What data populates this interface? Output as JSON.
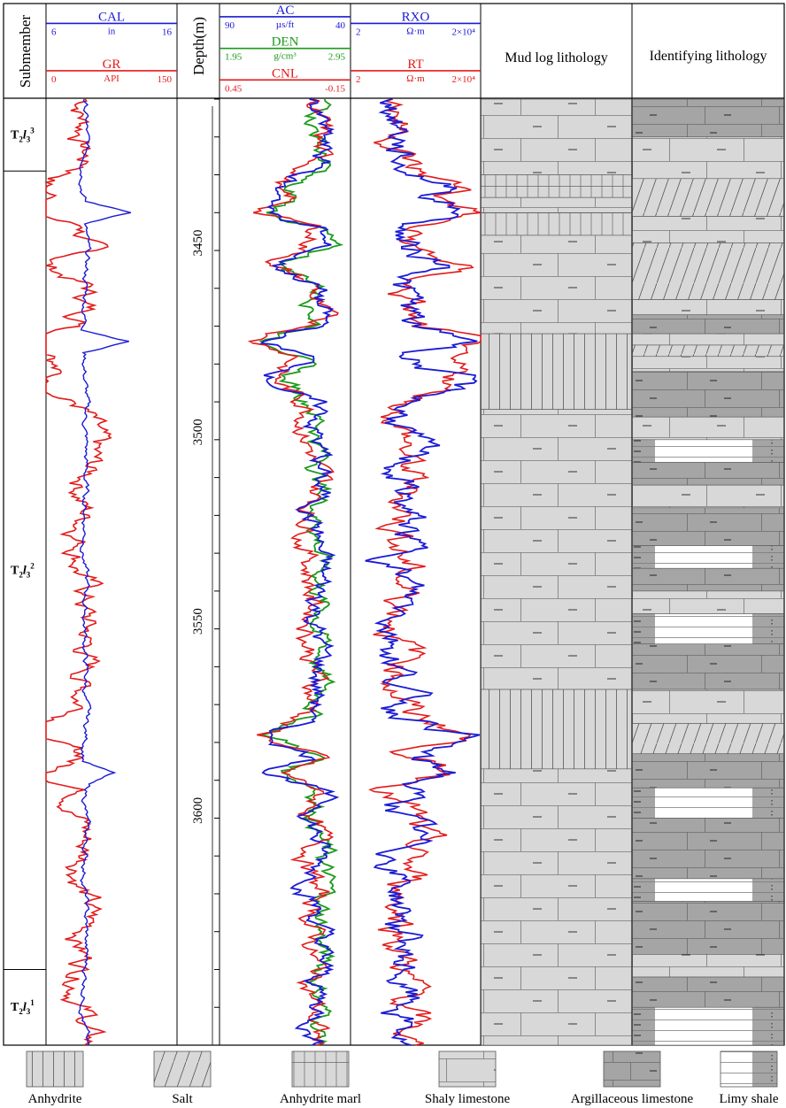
{
  "chart_data": {
    "type": "well-log",
    "depth": {
      "label": "Depth(m)",
      "range": [
        3412,
        3662
      ],
      "ticks": [
        3450,
        3500,
        3550,
        3600
      ]
    },
    "submember_header": "Submember",
    "submembers": [
      {
        "base": "T",
        "sub1": "2",
        "l": "l",
        "sub2": "3",
        "sup": "3",
        "top": 3412,
        "bottom": 3431
      },
      {
        "base": "T",
        "sub1": "2",
        "l": "l",
        "sub2": "3",
        "sup": "2",
        "top": 3431,
        "bottom": 3642
      },
      {
        "base": "T",
        "sub1": "2",
        "l": "l",
        "sub2": "3",
        "sup": "1",
        "top": 3642,
        "bottom": 3662
      }
    ],
    "tracks": [
      {
        "id": "track1",
        "curves": [
          {
            "name": "CAL",
            "unit": "in",
            "min": "6",
            "max": "16",
            "color": "#1a1ad6"
          },
          {
            "name": "GR",
            "unit": "API",
            "min": "0",
            "max": "150",
            "color": "#e41a1a"
          }
        ]
      },
      {
        "id": "track3",
        "curves": [
          {
            "name": "AC",
            "unit": "µs/ft",
            "min": "90",
            "max": "40",
            "color": "#1a1ad6"
          },
          {
            "name": "DEN",
            "unit": "g/cm³",
            "min": "1.95",
            "max": "2.95",
            "color": "#1a9a1a"
          },
          {
            "name": "CNL",
            "unit": "",
            "min": "0.45",
            "max": "-0.15",
            "color": "#e41a1a"
          }
        ]
      },
      {
        "id": "track4",
        "curves": [
          {
            "name": "RXO",
            "unit": "Ω·m",
            "min": "2",
            "max": "2×10⁴",
            "color": "#1a1ad6"
          },
          {
            "name": "RT",
            "unit": "Ω·m",
            "min": "2",
            "max": "2×10⁴",
            "color": "#e41a1a"
          }
        ]
      }
    ],
    "mud_log": {
      "title": "Mud log lithology",
      "intervals": [
        {
          "top": 3412,
          "bottom": 3432,
          "lith": "shaly limestone"
        },
        {
          "top": 3432,
          "bottom": 3438,
          "lith": "anhydrite marl"
        },
        {
          "top": 3438,
          "bottom": 3442,
          "lith": "shaly limestone"
        },
        {
          "top": 3442,
          "bottom": 3448,
          "lith": "anhydrite marl"
        },
        {
          "top": 3448,
          "bottom": 3474,
          "lith": "shaly limestone"
        },
        {
          "top": 3474,
          "bottom": 3494,
          "lith": "anhydrite"
        },
        {
          "top": 3494,
          "bottom": 3568,
          "lith": "shaly limestone"
        },
        {
          "top": 3568,
          "bottom": 3589,
          "lith": "anhydrite"
        },
        {
          "top": 3589,
          "bottom": 3662,
          "lith": "shaly limestone"
        }
      ]
    },
    "identified": {
      "title": "Identifying lithology",
      "intervals": [
        {
          "top": 3412,
          "bottom": 3422,
          "lith": "argillaceous limestone"
        },
        {
          "top": 3422,
          "bottom": 3433,
          "lith": "shaly limestone"
        },
        {
          "top": 3433,
          "bottom": 3443,
          "lith": "salt"
        },
        {
          "top": 3443,
          "bottom": 3450,
          "lith": "shaly limestone"
        },
        {
          "top": 3450,
          "bottom": 3465,
          "lith": "salt"
        },
        {
          "top": 3465,
          "bottom": 3469,
          "lith": "shaly limestone"
        },
        {
          "top": 3469,
          "bottom": 3474,
          "lith": "argillaceous limestone"
        },
        {
          "top": 3474,
          "bottom": 3477,
          "lith": "shaly limestone"
        },
        {
          "top": 3477,
          "bottom": 3480,
          "lith": "salt"
        },
        {
          "top": 3480,
          "bottom": 3484,
          "lith": "shaly limestone"
        },
        {
          "top": 3484,
          "bottom": 3496,
          "lith": "argillaceous limestone"
        },
        {
          "top": 3496,
          "bottom": 3502,
          "lith": "shaly limestone"
        },
        {
          "top": 3502,
          "bottom": 3508,
          "lith": "limy shale"
        },
        {
          "top": 3508,
          "bottom": 3514,
          "lith": "argillaceous limestone"
        },
        {
          "top": 3514,
          "bottom": 3520,
          "lith": "shaly limestone"
        },
        {
          "top": 3520,
          "bottom": 3530,
          "lith": "argillaceous limestone"
        },
        {
          "top": 3530,
          "bottom": 3536,
          "lith": "limy shale"
        },
        {
          "top": 3536,
          "bottom": 3542,
          "lith": "argillaceous limestone"
        },
        {
          "top": 3542,
          "bottom": 3548,
          "lith": "shaly limestone"
        },
        {
          "top": 3548,
          "bottom": 3556,
          "lith": "limy shale"
        },
        {
          "top": 3556,
          "bottom": 3568,
          "lith": "argillaceous limestone"
        },
        {
          "top": 3568,
          "bottom": 3577,
          "lith": "shaly limestone"
        },
        {
          "top": 3577,
          "bottom": 3585,
          "lith": "salt"
        },
        {
          "top": 3585,
          "bottom": 3594,
          "lith": "argillaceous limestone"
        },
        {
          "top": 3594,
          "bottom": 3602,
          "lith": "limy shale"
        },
        {
          "top": 3602,
          "bottom": 3618,
          "lith": "argillaceous limestone"
        },
        {
          "top": 3618,
          "bottom": 3624,
          "lith": "limy shale"
        },
        {
          "top": 3624,
          "bottom": 3638,
          "lith": "argillaceous limestone"
        },
        {
          "top": 3638,
          "bottom": 3644,
          "lith": "shaly limestone"
        },
        {
          "top": 3644,
          "bottom": 3652,
          "lith": "argillaceous limestone"
        },
        {
          "top": 3652,
          "bottom": 3662,
          "lith": "limy shale"
        }
      ]
    },
    "legend": [
      {
        "label": "Anhydrite",
        "lith": "anhydrite"
      },
      {
        "label": "Salt",
        "lith": "salt"
      },
      {
        "label": "Anhydrite marl",
        "lith": "anhydrite marl"
      },
      {
        "label": "Shaly limestone",
        "lith": "shaly limestone"
      },
      {
        "label": "Argillaceous limestone",
        "lith": "argillaceous limestone"
      },
      {
        "label": "Limy shale",
        "lith": "limy shale"
      }
    ]
  }
}
